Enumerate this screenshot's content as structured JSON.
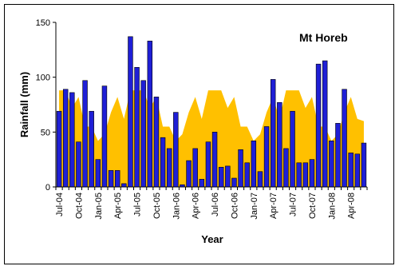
{
  "chart_data": {
    "type": "bar",
    "title": "Mt Horeb",
    "x_label": "Year",
    "y_label": "Rainfall (mm)",
    "categories": [
      "Jul-04",
      null,
      null,
      "Oct-04",
      null,
      null,
      "Jan-05",
      null,
      null,
      "Apr-05",
      null,
      null,
      "Jul-05",
      null,
      null,
      "Oct-05",
      null,
      null,
      "Jan-06",
      null,
      null,
      "Apr-06",
      null,
      null,
      "Jul-06",
      null,
      null,
      "Oct-06",
      null,
      null,
      "Jan-07",
      null,
      null,
      "Apr-07",
      null,
      null,
      "Jul-07",
      null,
      null,
      "Oct-07",
      null,
      null,
      "Jan-08",
      null,
      null,
      "Apr-08",
      null,
      null
    ],
    "series": [
      {
        "type": "area",
        "color": "#ffc000",
        "values": [
          88,
          88,
          72,
          82,
          55,
          55,
          42,
          48,
          68,
          82,
          62,
          88,
          88,
          88,
          72,
          82,
          55,
          55,
          42,
          48,
          68,
          82,
          62,
          88,
          88,
          88,
          72,
          82,
          55,
          55,
          42,
          48,
          68,
          82,
          62,
          88,
          88,
          88,
          72,
          82,
          55,
          55,
          42,
          48,
          68,
          82,
          62,
          60
        ]
      },
      {
        "type": "bar",
        "color": "#1f1fd6",
        "values": [
          69,
          89,
          86,
          41,
          97,
          69,
          25,
          92,
          15,
          15,
          3,
          137,
          109,
          97,
          133,
          82,
          45,
          35,
          68,
          2,
          24,
          35,
          7,
          41,
          50,
          18,
          19,
          8,
          34,
          22,
          42,
          14,
          55,
          98,
          77,
          35,
          69,
          22,
          22,
          25,
          112,
          115,
          42,
          58,
          89,
          31,
          30,
          40
        ]
      }
    ],
    "ylim": [
      0,
      150
    ],
    "yticks": [
      0,
      50,
      100,
      150
    ],
    "grid": false
  }
}
